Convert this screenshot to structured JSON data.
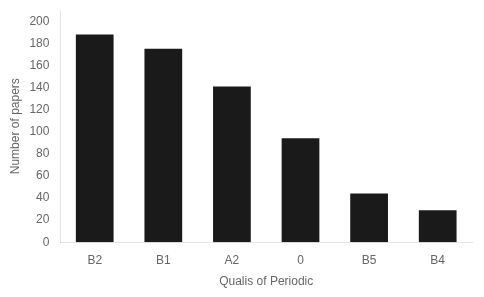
{
  "chart_data": {
    "type": "bar",
    "categories": [
      "B2",
      "B1",
      "A2",
      "0",
      "B5",
      "B4"
    ],
    "values": [
      188,
      175,
      141,
      94,
      44,
      29
    ],
    "color": "#1a1a1a",
    "xlabel": "Qualis of Periodic",
    "ylabel": "Number of papers",
    "ylim": [
      0,
      210
    ],
    "yticks": [
      0,
      20,
      40,
      60,
      80,
      100,
      120,
      140,
      160,
      180,
      200
    ],
    "grid": false
  }
}
